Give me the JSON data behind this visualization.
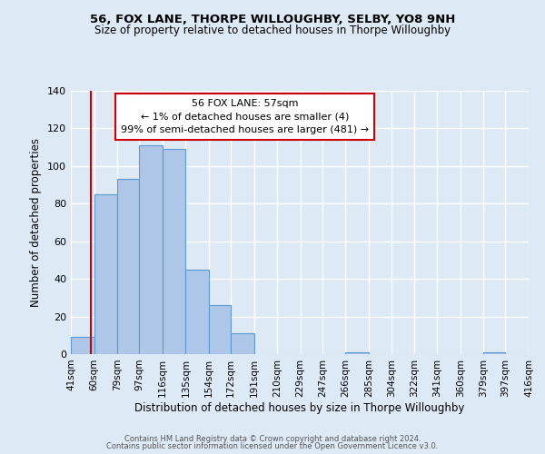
{
  "title": "56, FOX LANE, THORPE WILLOUGHBY, SELBY, YO8 9NH",
  "subtitle": "Size of property relative to detached houses in Thorpe Willoughby",
  "xlabel": "Distribution of detached houses by size in Thorpe Willoughby",
  "ylabel": "Number of detached properties",
  "bin_edges": [
    41,
    60,
    79,
    97,
    116,
    135,
    154,
    172,
    191,
    210,
    229,
    247,
    266,
    285,
    304,
    322,
    341,
    360,
    379,
    397,
    416
  ],
  "bin_labels": [
    "41sqm",
    "60sqm",
    "79sqm",
    "97sqm",
    "116sqm",
    "135sqm",
    "154sqm",
    "172sqm",
    "191sqm",
    "210sqm",
    "229sqm",
    "247sqm",
    "266sqm",
    "285sqm",
    "304sqm",
    "322sqm",
    "341sqm",
    "360sqm",
    "379sqm",
    "397sqm",
    "416sqm"
  ],
  "counts": [
    9,
    85,
    93,
    111,
    109,
    45,
    26,
    11,
    0,
    0,
    0,
    0,
    1,
    0,
    0,
    0,
    0,
    0,
    1,
    0
  ],
  "bar_color": "#aec6e8",
  "bar_edge_color": "#5b9bd5",
  "vline_x": 57,
  "vline_color": "#cc0000",
  "ylim": [
    0,
    140
  ],
  "yticks": [
    0,
    20,
    40,
    60,
    80,
    100,
    120,
    140
  ],
  "annotation_line1": "56 FOX LANE: 57sqm",
  "annotation_line2": "← 1% of detached houses are smaller (4)",
  "annotation_line3": "99% of semi-detached houses are larger (481) →",
  "annotation_box_color": "#ffffff",
  "annotation_box_edge": "#cc0000",
  "footnote1": "Contains HM Land Registry data © Crown copyright and database right 2024.",
  "footnote2": "Contains public sector information licensed under the Open Government Licence v3.0.",
  "bg_color": "#dde9f5",
  "plot_bg_color": "#dde9f5",
  "grid_color": "#ffffff"
}
